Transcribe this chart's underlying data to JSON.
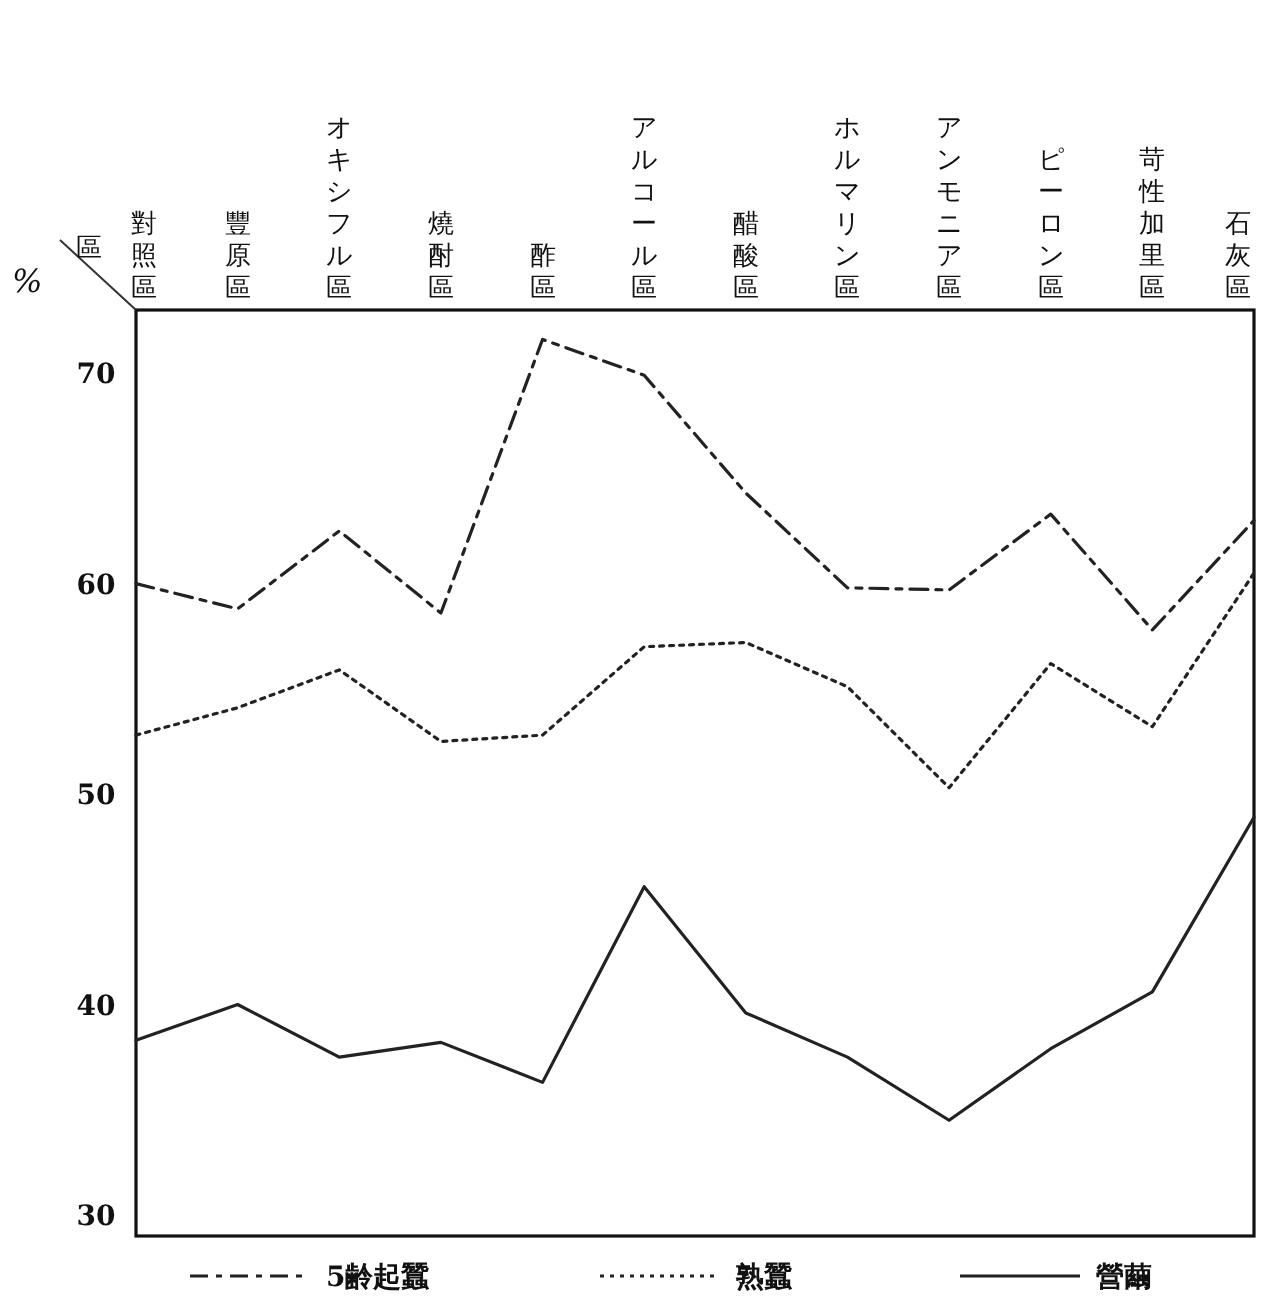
{
  "chart_data": {
    "type": "line",
    "xlabel": "區",
    "ylabel": "%",
    "categories": [
      "對照區",
      "豐原區",
      "オキシフル區",
      "燒酎區",
      "酢區",
      "アルコール區",
      "醋酸區",
      "ホルマリン區",
      "アンモニア區",
      "ピーロン區",
      "苛性加里區",
      "石灰區"
    ],
    "series": [
      {
        "name": "5齢起蠶",
        "color": "#222222",
        "line_style": "dashed",
        "values": [
          60.0,
          58.8,
          62.5,
          58.6,
          71.6,
          69.9,
          64.3,
          59.8,
          59.7,
          63.3,
          57.8,
          63.0
        ]
      },
      {
        "name": "熟蠶",
        "color": "#222222",
        "line_style": "dotted",
        "values": [
          52.8,
          54.1,
          55.9,
          52.5,
          52.8,
          57.0,
          57.2,
          55.1,
          50.3,
          56.2,
          53.2,
          60.5
        ]
      },
      {
        "name": "營繭",
        "color": "#222222",
        "line_style": "solid",
        "values": [
          38.3,
          40.0,
          37.5,
          38.2,
          36.3,
          45.6,
          39.6,
          37.5,
          34.5,
          37.9,
          40.6,
          48.9
        ]
      }
    ],
    "ylim": [
      29,
      73
    ],
    "yticks": [
      30,
      40,
      50,
      60,
      70
    ],
    "grid": false,
    "legend": "bottom",
    "marker": "none"
  }
}
